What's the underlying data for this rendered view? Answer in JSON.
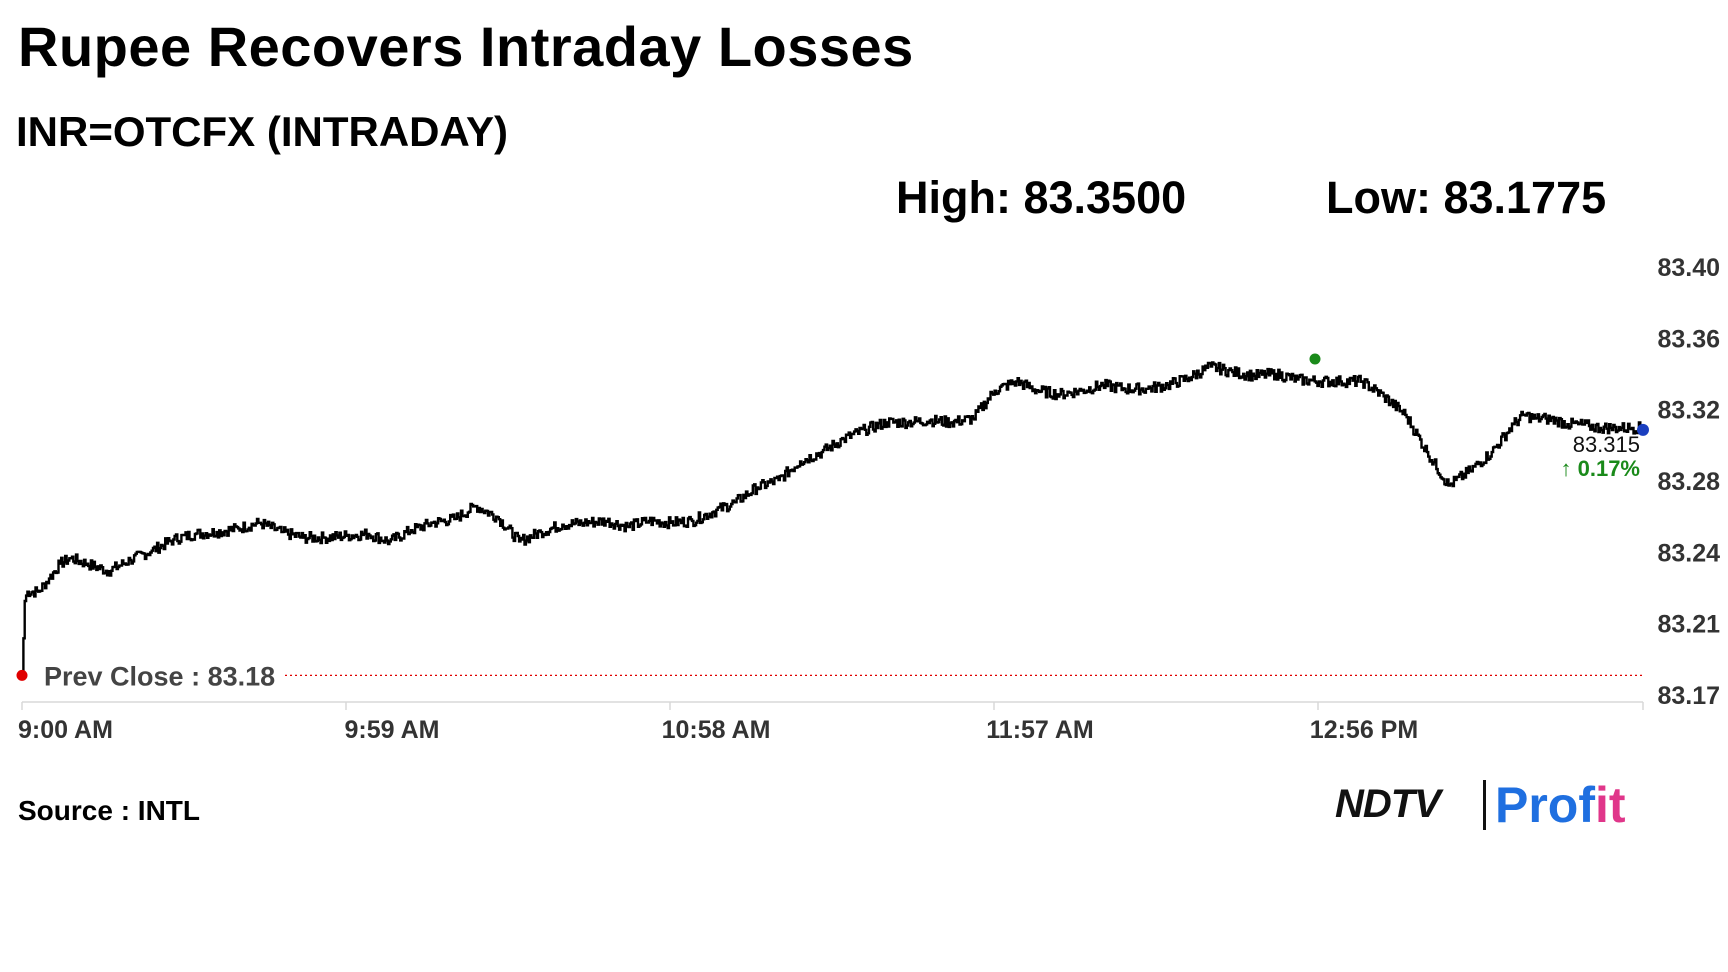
{
  "header": {
    "title": "Rupee Recovers Intraday Losses",
    "subtitle": "INR=OTCFX (INTRADAY)",
    "high_label": "High: 83.3500",
    "low_label": "Low: 83.1775"
  },
  "footer": {
    "source": "Source : INTL",
    "logo_ndtv": "NDTV",
    "logo_profit_a": "Prof",
    "logo_profit_b": "it"
  },
  "colors": {
    "line": "#000000",
    "prev_close": "#e00000",
    "high_marker": "#1a8a1a",
    "last_marker": "#1a3fbf",
    "change_up": "#1a8a1a",
    "axis_text": "#333333"
  },
  "chart_data": {
    "type": "line",
    "title": "Rupee Recovers Intraday Losses",
    "subtitle": "INR=OTCFX (INTRADAY)",
    "x_tick_labels": [
      "9:00 AM",
      "9:59 AM",
      "10:58 AM",
      "11:57 AM",
      "12:56 PM"
    ],
    "y_tick_labels": [
      "83.17",
      "83.21",
      "83.24",
      "83.28",
      "83.32",
      "83.36",
      "83.40"
    ],
    "ylim": [
      83.17,
      83.4
    ],
    "xlim_minutes": [
      0,
      300
    ],
    "grid": false,
    "prev_close": {
      "label": "Prev Close : 83.18",
      "value": 83.18
    },
    "high": 83.35,
    "low": 83.1775,
    "last": {
      "value": "83.315",
      "change": "↑ 0.17%"
    },
    "series": [
      {
        "x": [
          0,
          0.5,
          1,
          3,
          5,
          7,
          9,
          12,
          16,
          20,
          24,
          28,
          32,
          36,
          40,
          44,
          48,
          52,
          56,
          60,
          64,
          68,
          72,
          76,
          80,
          84,
          88,
          92,
          96,
          100,
          104,
          108,
          112,
          116,
          120,
          124,
          128,
          132,
          136,
          140,
          144,
          148,
          152,
          156,
          160,
          164,
          168,
          172,
          176,
          180,
          184,
          188,
          192,
          196,
          200,
          204,
          208,
          212,
          216,
          220,
          224,
          228,
          232,
          236,
          240,
          244,
          248,
          252,
          256,
          260,
          264,
          268,
          272,
          276,
          278,
          280,
          282,
          284,
          286,
          288,
          290,
          292,
          294,
          296,
          298,
          300
        ],
        "y": [
          83.18,
          83.22,
          83.225,
          83.225,
          83.232,
          83.24,
          83.243,
          83.24,
          83.236,
          83.242,
          83.247,
          83.253,
          83.256,
          83.257,
          83.259,
          83.262,
          83.257,
          83.254,
          83.254,
          83.255,
          83.256,
          83.252,
          83.258,
          83.262,
          83.264,
          83.271,
          83.265,
          83.252,
          83.257,
          83.261,
          83.262,
          83.263,
          83.26,
          83.263,
          83.262,
          83.263,
          83.268,
          83.273,
          83.281,
          83.285,
          83.295,
          83.3,
          83.307,
          83.312,
          83.316,
          83.316,
          83.317,
          83.316,
          83.318,
          83.333,
          83.338,
          83.333,
          83.331,
          83.333,
          83.336,
          83.334,
          83.334,
          83.336,
          83.34,
          83.346,
          83.343,
          83.341,
          83.342,
          83.339,
          83.338,
          83.338,
          83.338,
          83.33,
          83.32,
          83.3,
          83.282,
          83.29,
          83.3,
          83.315,
          83.32,
          83.318,
          83.318,
          83.317,
          83.315,
          83.315,
          83.314,
          83.313,
          83.313,
          83.313,
          83.313,
          83.313
        ]
      }
    ]
  }
}
